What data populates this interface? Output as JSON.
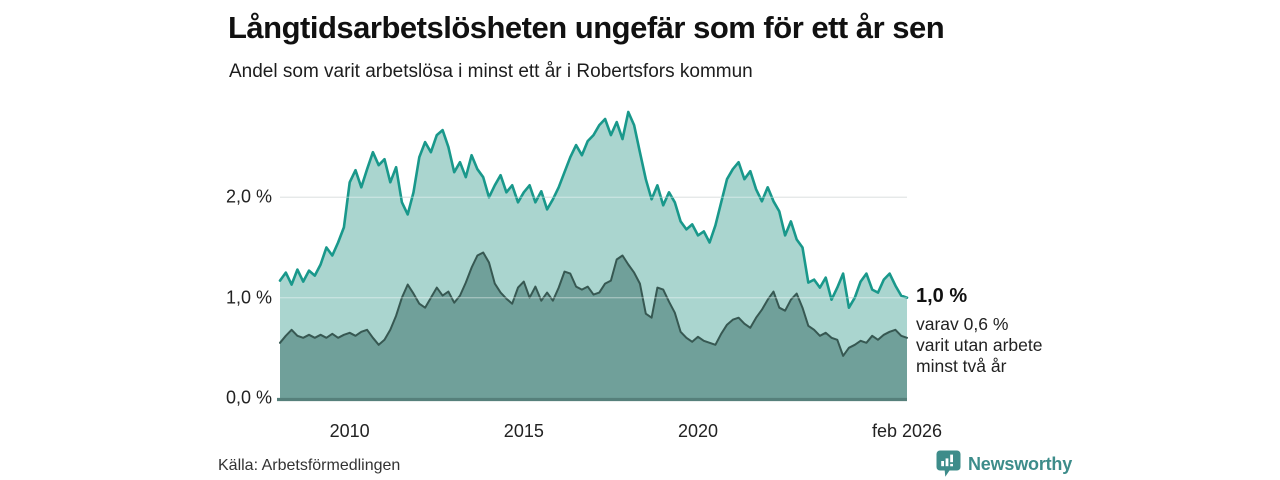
{
  "header": {
    "title": "Långtidsarbetslösheten ungefär som för ett år sen",
    "subtitle": "Andel som varit arbetslösa i minst ett år i Robertsfors kommun"
  },
  "footer": {
    "source": "Källa: Arbetsförmedlingen",
    "brand_name": "Newsworthy",
    "brand_color": "#3d8c8a"
  },
  "chart_data": {
    "type": "area",
    "title": "Långtidsarbetslösheten ungefär som för ett år sen",
    "subtitle": "Andel som varit arbetslösa i minst ett år i Robertsfors kommun",
    "unit": "%",
    "x_start": 2008.0,
    "x_step_years": 0.166667,
    "xlim": [
      2008.0,
      2026.0
    ],
    "ylim": [
      0,
      2.9
    ],
    "grid": true,
    "grid_color": "#d9dddd",
    "baseline_color": "#56807b",
    "xticks": [
      {
        "label": "2010",
        "year": 2010
      },
      {
        "label": "2015",
        "year": 2015
      },
      {
        "label": "2020",
        "year": 2020
      },
      {
        "label": "feb 2026",
        "year": 2026
      }
    ],
    "yticks": [
      {
        "label": "0,0 %",
        "value": 0
      },
      {
        "label": "1,0 %",
        "value": 1
      },
      {
        "label": "2,0 %",
        "value": 2
      }
    ],
    "series": [
      {
        "name": "Andel arbetslösa minst ett år",
        "line_color": "#19988b",
        "fill_color": "#aad5cf",
        "line_width": 2.6,
        "last_value": 1.0,
        "values": [
          1.17,
          1.25,
          1.13,
          1.28,
          1.16,
          1.27,
          1.22,
          1.33,
          1.5,
          1.42,
          1.55,
          1.7,
          2.15,
          2.27,
          2.1,
          2.28,
          2.45,
          2.32,
          2.38,
          2.15,
          2.3,
          1.95,
          1.83,
          2.05,
          2.4,
          2.55,
          2.45,
          2.62,
          2.67,
          2.5,
          2.25,
          2.35,
          2.2,
          2.42,
          2.28,
          2.2,
          2.0,
          2.12,
          2.22,
          2.05,
          2.12,
          1.95,
          2.05,
          2.12,
          1.95,
          2.06,
          1.88,
          1.98,
          2.1,
          2.25,
          2.4,
          2.52,
          2.42,
          2.56,
          2.62,
          2.72,
          2.78,
          2.62,
          2.75,
          2.58,
          2.85,
          2.72,
          2.45,
          2.18,
          1.98,
          2.12,
          1.92,
          2.05,
          1.95,
          1.76,
          1.68,
          1.73,
          1.62,
          1.66,
          1.55,
          1.72,
          1.95,
          2.18,
          2.28,
          2.35,
          2.18,
          2.26,
          2.08,
          1.96,
          2.1,
          1.96,
          1.86,
          1.62,
          1.76,
          1.58,
          1.5,
          1.15,
          1.18,
          1.1,
          1.2,
          0.98,
          1.1,
          1.24,
          0.9,
          1.0,
          1.16,
          1.24,
          1.08,
          1.05,
          1.18,
          1.24,
          1.12,
          1.02,
          1.0
        ]
      },
      {
        "name": "Andel arbetslösa minst två år",
        "line_color": "#375852",
        "fill_color": "#70a09a",
        "line_width": 2,
        "last_value": 0.6,
        "values": [
          0.55,
          0.62,
          0.68,
          0.62,
          0.6,
          0.63,
          0.6,
          0.63,
          0.6,
          0.64,
          0.6,
          0.63,
          0.65,
          0.62,
          0.66,
          0.68,
          0.6,
          0.53,
          0.58,
          0.68,
          0.82,
          1.0,
          1.13,
          1.04,
          0.94,
          0.9,
          1.0,
          1.1,
          1.02,
          1.06,
          0.95,
          1.02,
          1.15,
          1.3,
          1.42,
          1.45,
          1.35,
          1.14,
          1.05,
          0.99,
          0.94,
          1.1,
          1.16,
          1.0,
          1.11,
          0.97,
          1.05,
          0.97,
          1.1,
          1.26,
          1.24,
          1.11,
          1.08,
          1.11,
          1.03,
          1.05,
          1.14,
          1.17,
          1.38,
          1.42,
          1.33,
          1.25,
          1.14,
          0.84,
          0.8,
          1.1,
          1.08,
          0.96,
          0.85,
          0.66,
          0.6,
          0.56,
          0.61,
          0.57,
          0.55,
          0.53,
          0.64,
          0.73,
          0.78,
          0.8,
          0.74,
          0.7,
          0.8,
          0.88,
          0.98,
          1.06,
          0.9,
          0.87,
          0.98,
          1.04,
          0.9,
          0.72,
          0.68,
          0.62,
          0.65,
          0.6,
          0.58,
          0.42,
          0.5,
          0.53,
          0.57,
          0.55,
          0.62,
          0.58,
          0.63,
          0.66,
          0.68,
          0.62,
          0.6
        ]
      }
    ],
    "end_labels": {
      "primary": "1,0 %",
      "secondary": [
        "varav 0,6 %",
        "varit utan arbete",
        "minst två år"
      ]
    }
  }
}
